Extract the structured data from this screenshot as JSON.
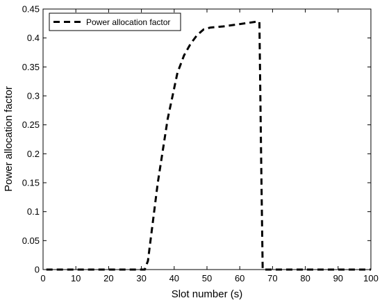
{
  "chart_data": {
    "type": "line",
    "xlabel": "Slot number (s)",
    "ylabel": "Power allocation factor",
    "xlim": [
      0,
      100
    ],
    "ylim": [
      0,
      0.45
    ],
    "xticks": [
      0,
      10,
      20,
      30,
      40,
      50,
      60,
      70,
      80,
      90,
      100
    ],
    "yticks": [
      0,
      0.05,
      0.1,
      0.15,
      0.2,
      0.25,
      0.3,
      0.35,
      0.4,
      0.45
    ],
    "xtick_labels": [
      "0",
      "10",
      "20",
      "30",
      "40",
      "50",
      "60",
      "70",
      "80",
      "90",
      "100"
    ],
    "ytick_labels": [
      "0",
      "0.05",
      "0.1",
      "0.15",
      "0.2",
      "0.25",
      "0.3",
      "0.35",
      "0.4",
      "0.45"
    ],
    "grid": false,
    "legend_position": "top-left",
    "series": [
      {
        "name": "Power allocation factor",
        "line_style": "dashed",
        "color": "#000000",
        "x": [
          1,
          31,
          32,
          35,
          38,
          41,
          43,
          45,
          47,
          49,
          51,
          55,
          60,
          65,
          66,
          66.5,
          67,
          70,
          80,
          90,
          100
        ],
        "y": [
          0,
          0,
          0.015,
          0.15,
          0.26,
          0.34,
          0.37,
          0.39,
          0.405,
          0.415,
          0.418,
          0.42,
          0.424,
          0.428,
          0.428,
          0.2,
          0,
          0,
          0,
          0,
          0
        ]
      }
    ]
  }
}
